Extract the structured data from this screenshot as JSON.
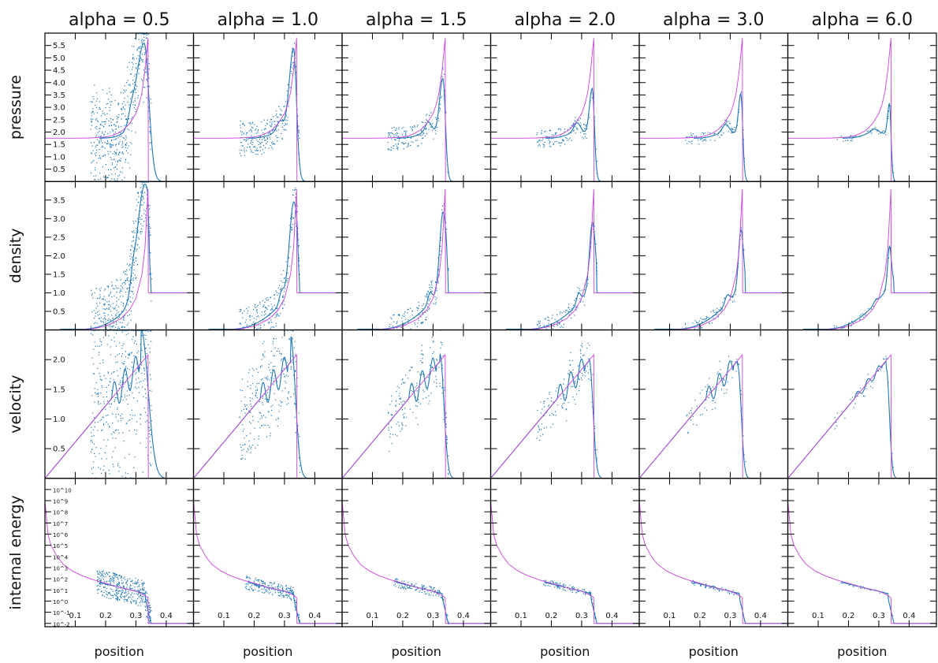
{
  "chart_data": {
    "type": "scatter",
    "columns": [
      {
        "title": "alpha = 0.5",
        "alpha": 0.5
      },
      {
        "title": "alpha = 1.0",
        "alpha": 1.0
      },
      {
        "title": "alpha = 1.5",
        "alpha": 1.5
      },
      {
        "title": "alpha = 2.0",
        "alpha": 2.0
      },
      {
        "title": "alpha = 3.0",
        "alpha": 3.0
      },
      {
        "title": "alpha = 6.0",
        "alpha": 6.0
      }
    ],
    "rows": [
      {
        "ylabel": "pressure",
        "ylim": [
          0,
          6.0
        ],
        "yticks": [
          "0.5",
          "1.0",
          "1.5",
          "2.0",
          "2.5",
          "3.0",
          "3.5",
          "4.0",
          "4.5",
          "5.0",
          "5.5"
        ],
        "ytick_values": [
          0.5,
          1.0,
          1.5,
          2.0,
          2.5,
          3.0,
          3.5,
          4.0,
          4.5,
          5.0,
          5.5
        ],
        "exact": {
          "x": [
            0.0,
            0.05,
            0.1,
            0.15,
            0.2,
            0.22,
            0.24,
            0.26,
            0.28,
            0.3,
            0.31,
            0.32,
            0.33,
            0.34,
            0.341,
            0.49
          ],
          "y": [
            1.75,
            1.75,
            1.75,
            1.76,
            1.8,
            1.85,
            1.95,
            2.1,
            2.35,
            2.75,
            3.1,
            3.6,
            4.5,
            5.8,
            0.0,
            0.0
          ]
        },
        "series_peaks": [
          6.0,
          5.8,
          4.6,
          4.2,
          4.0,
          3.6
        ]
      },
      {
        "ylabel": "density",
        "ylim": [
          0,
          4.0
        ],
        "yticks": [
          "0.5",
          "1.0",
          "1.5",
          "2.0",
          "2.5",
          "3.0",
          "3.5"
        ],
        "ytick_values": [
          0.5,
          1.0,
          1.5,
          2.0,
          2.5,
          3.0,
          3.5
        ],
        "exact": {
          "x": [
            0.0,
            0.1,
            0.15,
            0.2,
            0.25,
            0.28,
            0.3,
            0.32,
            0.33,
            0.34,
            0.341,
            0.49
          ],
          "y": [
            0.0,
            0.0,
            0.02,
            0.1,
            0.3,
            0.55,
            0.85,
            1.5,
            2.2,
            3.8,
            1.0,
            1.0
          ]
        },
        "series_peaks": [
          4.0,
          3.5,
          3.2,
          2.9,
          2.7,
          2.25
        ]
      },
      {
        "ylabel": "velocity",
        "ylim": [
          0,
          2.5
        ],
        "yticks": [
          "0.5",
          "1.0",
          "1.5",
          "2.0"
        ],
        "ytick_values": [
          0.5,
          1.0,
          1.5,
          2.0
        ],
        "exact": {
          "x": [
            0.0,
            0.34,
            0.341,
            0.49
          ],
          "y": [
            0.0,
            2.08,
            0.0,
            0.0
          ]
        },
        "series_peaks": [
          2.5,
          2.4,
          2.1,
          2.0,
          1.9,
          1.85
        ]
      },
      {
        "ylabel": "internal energy",
        "ylim": [
          -2.3,
          11.0
        ],
        "log_scale": true,
        "yticks": [
          "10^-2",
          "10^-1",
          "10^0",
          "10^1",
          "10^2",
          "10^3",
          "10^4",
          "10^5",
          "10^6",
          "10^7",
          "10^8",
          "10^9",
          "10^10"
        ],
        "ytick_values": [
          -2,
          -1,
          0,
          1,
          2,
          3,
          4,
          5,
          6,
          7,
          8,
          9,
          10
        ],
        "exact": {
          "x": [
            0.0,
            0.01,
            0.02,
            0.04,
            0.06,
            0.09,
            0.12,
            0.16,
            0.2,
            0.25,
            0.3,
            0.33,
            0.34,
            0.341,
            0.49
          ],
          "y": [
            9.0,
            6.0,
            5.0,
            4.0,
            3.3,
            2.7,
            2.3,
            1.9,
            1.6,
            1.2,
            0.9,
            0.5,
            0.3,
            -2.0,
            -2.0
          ]
        }
      }
    ],
    "xlabel": "position",
    "xlim": [
      0.0,
      0.49
    ],
    "xticks": [
      "0.1",
      "0.2",
      "0.3",
      "0.4"
    ],
    "xtick_values": [
      0.1,
      0.2,
      0.3,
      0.4
    ],
    "colors": {
      "simulation": "#1f77b4",
      "exact": "#cc44dd"
    },
    "grid": false,
    "legend": "none"
  }
}
